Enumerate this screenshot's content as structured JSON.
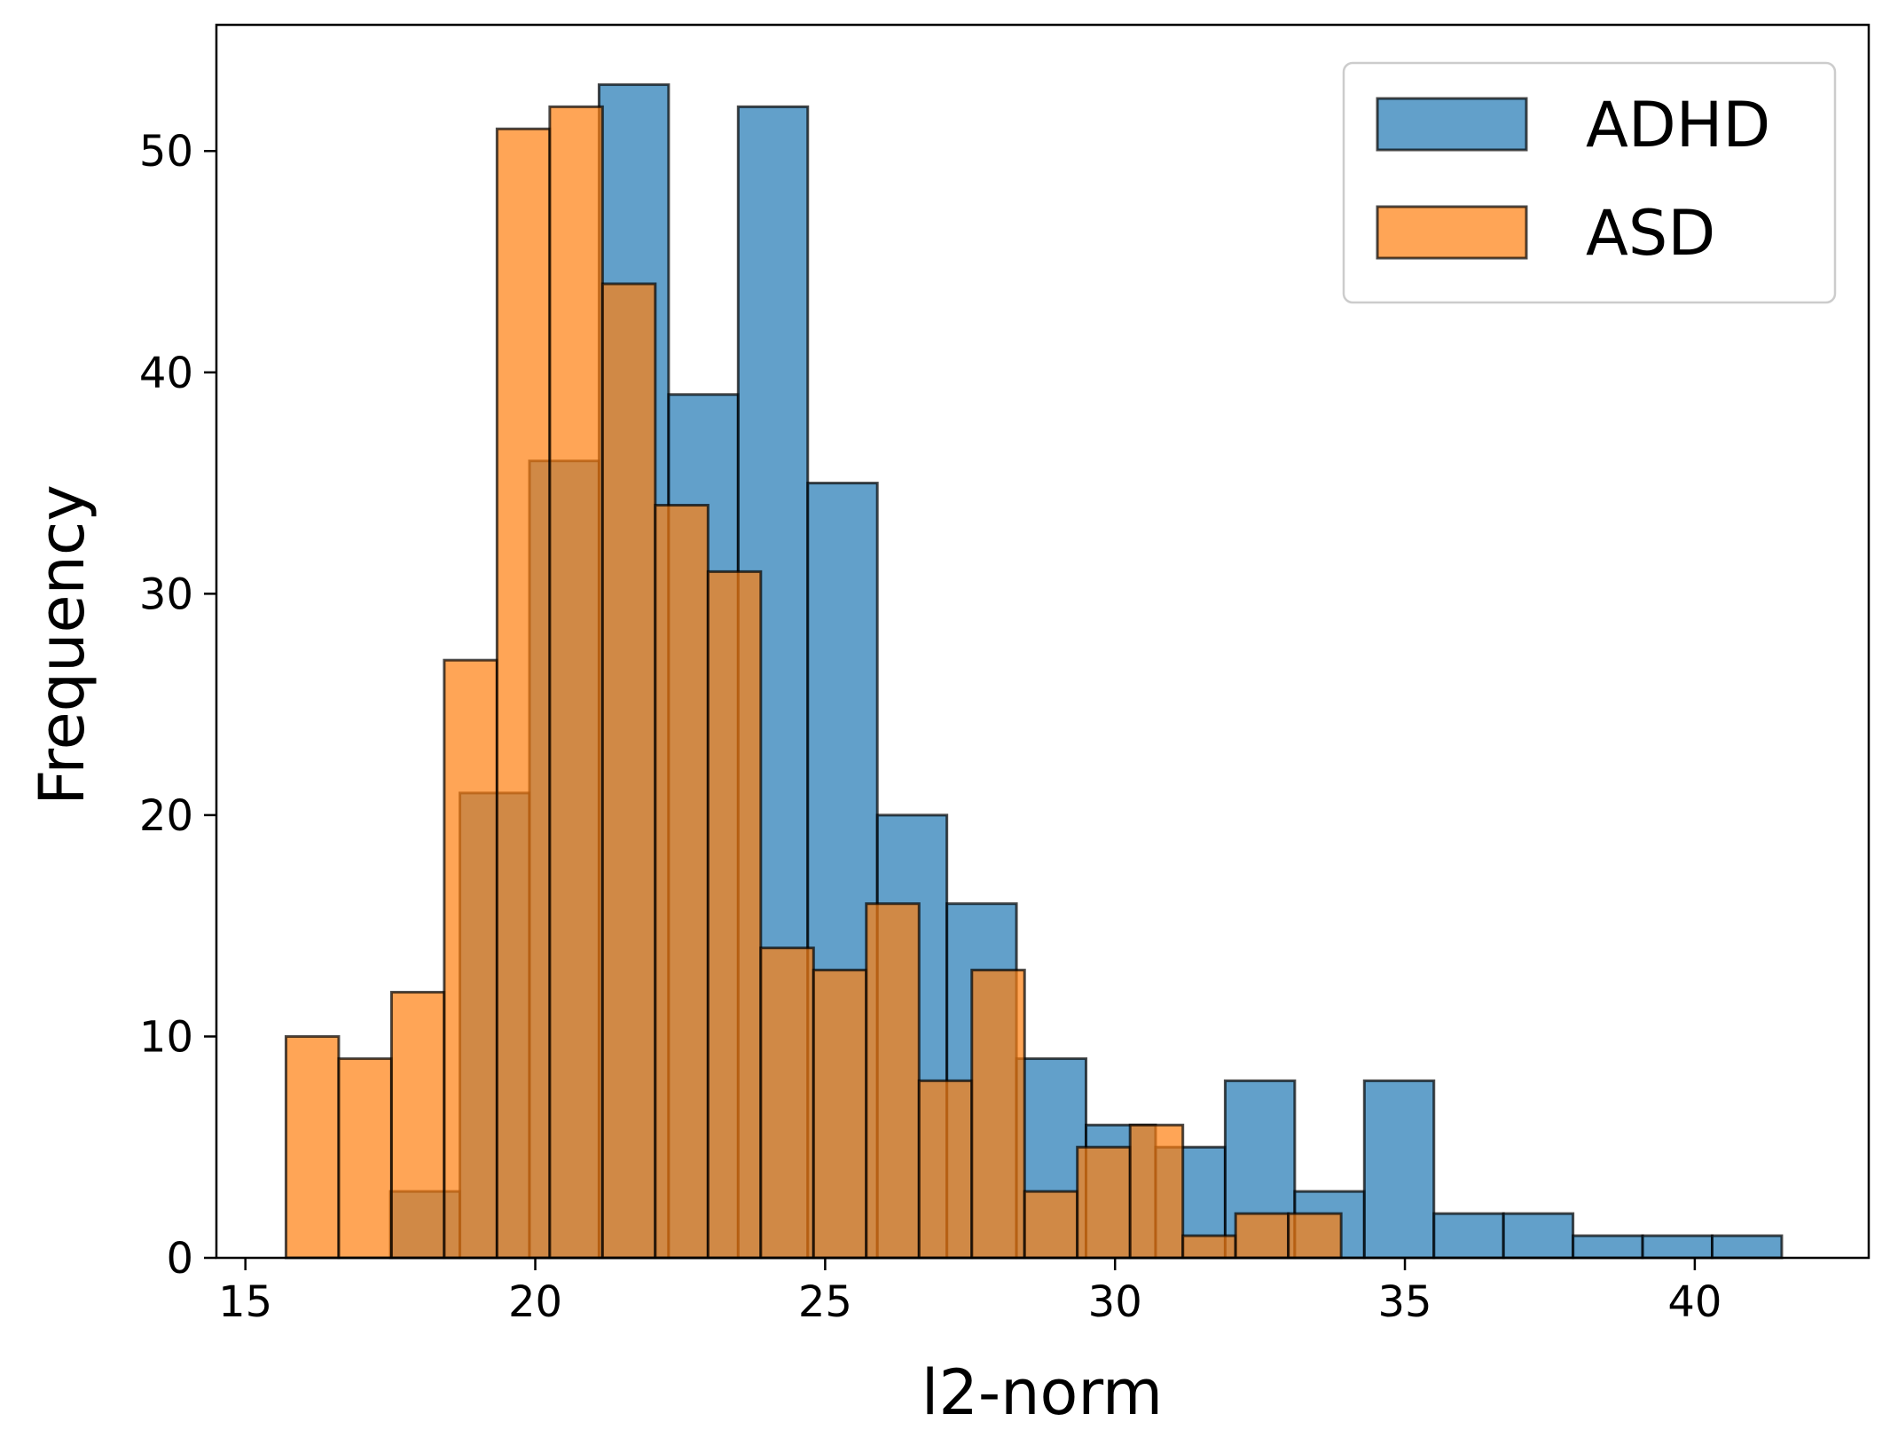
{
  "chart_data": {
    "type": "bar",
    "title": "",
    "xlabel": "l2-norm",
    "ylabel": "Frequency",
    "xlim": [
      14.5,
      43
    ],
    "ylim": [
      0,
      55.7
    ],
    "xticks": [
      15,
      20,
      25,
      30,
      35,
      40
    ],
    "yticks": [
      0,
      10,
      20,
      30,
      40,
      50
    ],
    "grid": false,
    "legend": "top-right",
    "colors": {
      "ADHD": "#1f77b4",
      "ASD": "#ff7f0e",
      "edge": "#000000"
    },
    "series": [
      {
        "name": "ADHD",
        "bin_edges": [
          17.5,
          18.7,
          19.9,
          21.1,
          22.3,
          23.5,
          24.7,
          25.9,
          27.1,
          28.3,
          29.5,
          30.7,
          31.9,
          33.1,
          34.3,
          35.5,
          36.7,
          37.9,
          39.1,
          40.3,
          41.5
        ],
        "counts": [
          3,
          21,
          36,
          53,
          39,
          52,
          35,
          20,
          16,
          9,
          6,
          5,
          8,
          3,
          8,
          2,
          2,
          1,
          1,
          1
        ]
      },
      {
        "name": "ASD",
        "bin_edges": [
          15.7,
          16.61,
          17.52,
          18.43,
          19.34,
          20.25,
          21.16,
          22.07,
          22.98,
          23.89,
          24.8,
          25.71,
          26.62,
          27.53,
          28.44,
          29.35,
          30.26,
          31.17,
          32.08,
          32.99,
          33.9
        ],
        "counts": [
          10,
          9,
          12,
          27,
          51,
          52,
          44,
          34,
          31,
          14,
          13,
          16,
          8,
          13,
          3,
          5,
          6,
          1,
          2,
          2
        ]
      }
    ]
  }
}
